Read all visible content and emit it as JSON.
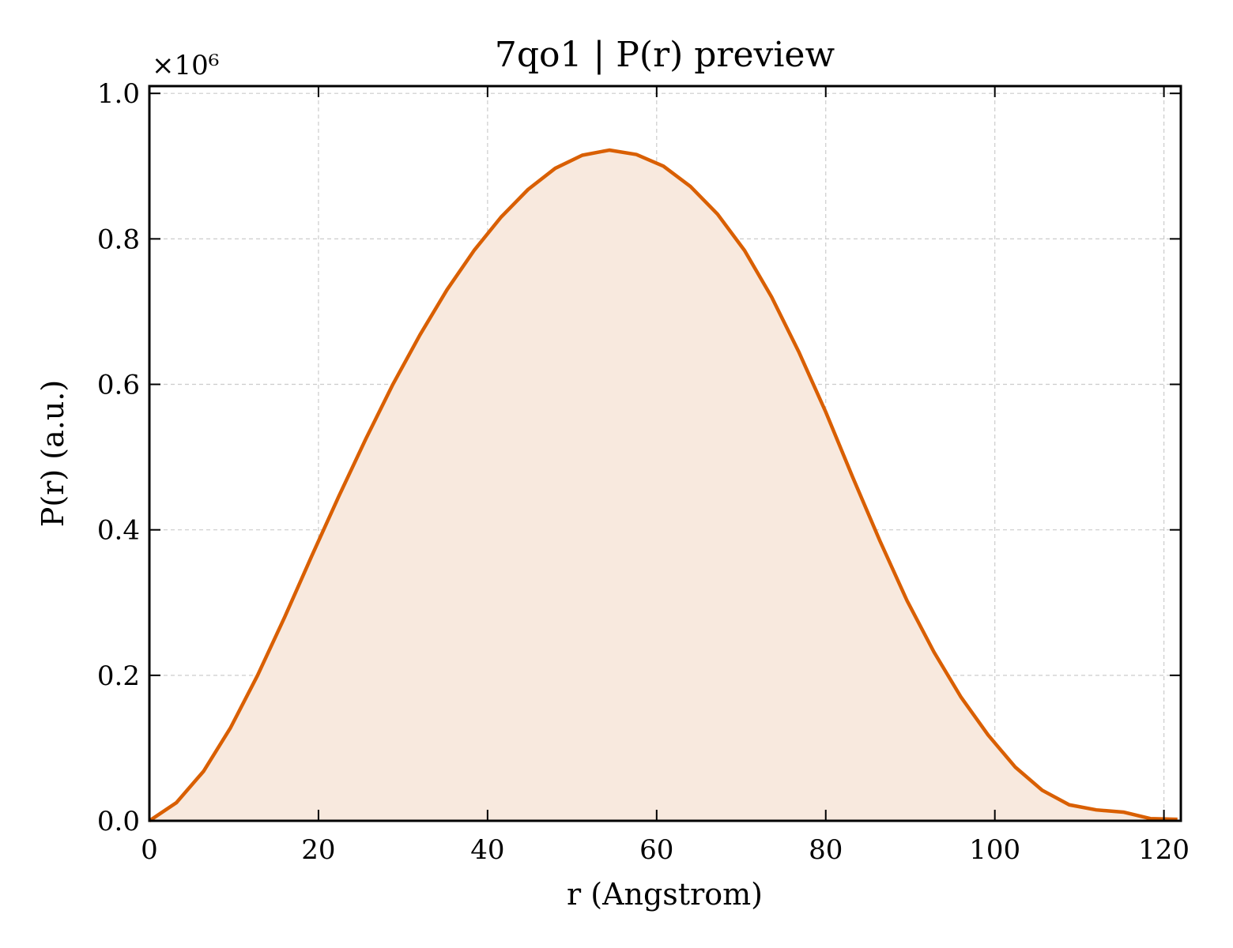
{
  "chart_data": {
    "type": "area",
    "title": "7qo1 | P(r) preview",
    "xlabel": "r (Angstrom)",
    "ylabel": "P(r) (a.u.)",
    "y_multiplier_label": "×10⁶",
    "xlim": [
      0,
      122
    ],
    "ylim": [
      0,
      1.01
    ],
    "xticks": [
      0,
      20,
      40,
      60,
      80,
      100,
      120
    ],
    "yticks": [
      0.0,
      0.2,
      0.4,
      0.6,
      0.8,
      1.0
    ],
    "xtick_labels": [
      "0",
      "20",
      "40",
      "60",
      "80",
      "100",
      "120"
    ],
    "ytick_labels": [
      "0.0",
      "0.2",
      "0.4",
      "0.6",
      "0.8",
      "1.0"
    ],
    "grid": true,
    "series": [
      {
        "color": "#d95f02",
        "fill_color": "#f8e9de",
        "x": [
          0,
          3.2,
          6.4,
          9.6,
          12.8,
          16.0,
          19.2,
          22.4,
          25.6,
          28.8,
          32.0,
          35.2,
          38.4,
          41.6,
          44.8,
          48.0,
          51.2,
          54.4,
          57.6,
          60.8,
          64.0,
          67.2,
          70.4,
          73.6,
          76.8,
          80.0,
          83.2,
          86.4,
          89.6,
          92.8,
          96.0,
          99.2,
          102.4,
          105.6,
          108.8,
          112.0,
          115.2,
          118.4,
          121.6
        ],
        "y": [
          0.0,
          0.025,
          0.068,
          0.128,
          0.2,
          0.28,
          0.364,
          0.446,
          0.525,
          0.6,
          0.668,
          0.73,
          0.784,
          0.83,
          0.868,
          0.897,
          0.915,
          0.922,
          0.916,
          0.9,
          0.872,
          0.834,
          0.784,
          0.72,
          0.645,
          0.562,
          0.472,
          0.385,
          0.303,
          0.232,
          0.17,
          0.118,
          0.074,
          0.042,
          0.022,
          0.015,
          0.012,
          0.003,
          0.002
        ]
      }
    ]
  }
}
